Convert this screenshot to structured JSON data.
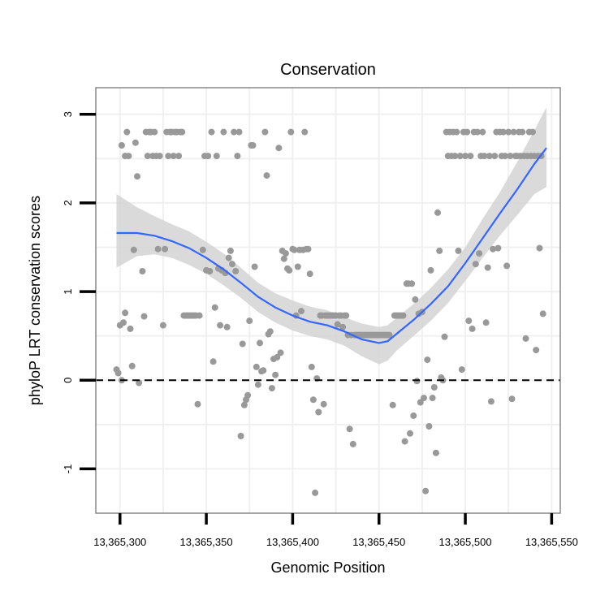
{
  "chart_data": {
    "type": "scatter",
    "title": "Conservation",
    "xlabel": "Genomic Position",
    "ylabel": "phyloP LRT conservation scores",
    "xlim": [
      13365286,
      13365555
    ],
    "ylim": [
      -1.5,
      3.3
    ],
    "x_ticks": [
      13365300,
      13365350,
      13365400,
      13365450,
      13365500,
      13365550
    ],
    "x_tick_labels": [
      "13,365,300",
      "13,365,350",
      "13,365,400",
      "13,365,450",
      "13,365,500",
      "13,365,550"
    ],
    "y_ticks": [
      -1,
      0,
      1,
      2,
      3
    ],
    "y_tick_labels": [
      "-1",
      "0",
      "1",
      "2",
      "3"
    ],
    "reference_line": {
      "y": 0,
      "style": "dashed",
      "color": "#000000"
    },
    "colors": {
      "points": "#999999",
      "smooth": "#3366ff",
      "band": "#d3d3d3",
      "frame": "#888888",
      "grid": "#f0f0f0"
    },
    "points": [
      [
        13365298,
        0.12
      ],
      [
        13365299,
        0.08
      ],
      [
        13365300,
        0.62
      ],
      [
        13365301,
        0.0
      ],
      [
        13365301,
        2.65
      ],
      [
        13365302,
        0.65
      ],
      [
        13365303,
        0.76
      ],
      [
        13365303,
        2.53
      ],
      [
        13365304,
        2.8
      ],
      [
        13365305,
        2.53
      ],
      [
        13365306,
        0.58
      ],
      [
        13365307,
        0.16
      ],
      [
        13365308,
        1.47
      ],
      [
        13365309,
        2.68
      ],
      [
        13365310,
        2.3
      ],
      [
        13365311,
        -0.03
      ],
      [
        13365313,
        1.23
      ],
      [
        13365314,
        0.72
      ],
      [
        13365315,
        2.8
      ],
      [
        13365316,
        2.53
      ],
      [
        13365317,
        2.8
      ],
      [
        13365318,
        2.8
      ],
      [
        13365319,
        2.53
      ],
      [
        13365320,
        2.8
      ],
      [
        13365321,
        2.53
      ],
      [
        13365322,
        1.48
      ],
      [
        13365323,
        2.53
      ],
      [
        13365325,
        0.62
      ],
      [
        13365326,
        1.48
      ],
      [
        13365327,
        2.8
      ],
      [
        13365328,
        2.53
      ],
      [
        13365329,
        2.8
      ],
      [
        13365330,
        2.8
      ],
      [
        13365331,
        2.53
      ],
      [
        13365332,
        2.8
      ],
      [
        13365333,
        2.8
      ],
      [
        13365334,
        2.53
      ],
      [
        13365335,
        2.8
      ],
      [
        13365336,
        2.8
      ],
      [
        13365337,
        0.73
      ],
      [
        13365338,
        0.73
      ],
      [
        13365339,
        0.73
      ],
      [
        13365340,
        0.73
      ],
      [
        13365341,
        0.73
      ],
      [
        13365342,
        0.73
      ],
      [
        13365343,
        0.73
      ],
      [
        13365344,
        0.73
      ],
      [
        13365345,
        -0.27
      ],
      [
        13365346,
        0.73
      ],
      [
        13365348,
        1.47
      ],
      [
        13365349,
        2.53
      ],
      [
        13365350,
        1.24
      ],
      [
        13365351,
        2.53
      ],
      [
        13365352,
        1.23
      ],
      [
        13365353,
        2.8
      ],
      [
        13365354,
        0.21
      ],
      [
        13365355,
        0.82
      ],
      [
        13365356,
        2.53
      ],
      [
        13365357,
        1.26
      ],
      [
        13365358,
        0.62
      ],
      [
        13365359,
        1.24
      ],
      [
        13365360,
        2.8
      ],
      [
        13365361,
        1.21
      ],
      [
        13365362,
        0.6
      ],
      [
        13365363,
        1.38
      ],
      [
        13365364,
        1.46
      ],
      [
        13365365,
        1.31
      ],
      [
        13365366,
        2.8
      ],
      [
        13365367,
        1.23
      ],
      [
        13365368,
        2.53
      ],
      [
        13365369,
        2.8
      ],
      [
        13365370,
        -0.63
      ],
      [
        13365371,
        0.41
      ],
      [
        13365372,
        -0.28
      ],
      [
        13365373,
        -0.22
      ],
      [
        13365374,
        -0.17
      ],
      [
        13365375,
        0.67
      ],
      [
        13365376,
        2.65
      ],
      [
        13365377,
        2.65
      ],
      [
        13365378,
        1.28
      ],
      [
        13365379,
        0.15
      ],
      [
        13365380,
        -0.05
      ],
      [
        13365381,
        0.42
      ],
      [
        13365382,
        0.1
      ],
      [
        13365383,
        0.11
      ],
      [
        13365384,
        2.8
      ],
      [
        13365385,
        2.31
      ],
      [
        13365386,
        0.52
      ],
      [
        13365387,
        0.55
      ],
      [
        13365388,
        -0.09
      ],
      [
        13365389,
        0.24
      ],
      [
        13365390,
        0.06
      ],
      [
        13365391,
        0.26
      ],
      [
        13365392,
        2.62
      ],
      [
        13365393,
        0.31
      ],
      [
        13365394,
        1.46
      ],
      [
        13365395,
        1.37
      ],
      [
        13365396,
        1.43
      ],
      [
        13365397,
        1.26
      ],
      [
        13365398,
        1.24
      ],
      [
        13365399,
        2.8
      ],
      [
        13365400,
        1.48
      ],
      [
        13365401,
        1.47
      ],
      [
        13365402,
        0.73
      ],
      [
        13365403,
        1.28
      ],
      [
        13365404,
        1.47
      ],
      [
        13365405,
        0.78
      ],
      [
        13365406,
        1.47
      ],
      [
        13365407,
        2.8
      ],
      [
        13365408,
        1.48
      ],
      [
        13365409,
        1.48
      ],
      [
        13365410,
        1.2
      ],
      [
        13365411,
        0.15
      ],
      [
        13365412,
        -0.22
      ],
      [
        13365413,
        -1.27
      ],
      [
        13365414,
        0.02
      ],
      [
        13365415,
        -0.36
      ],
      [
        13365416,
        0.73
      ],
      [
        13365417,
        0.73
      ],
      [
        13365418,
        -0.27
      ],
      [
        13365419,
        0.73
      ],
      [
        13365420,
        0.73
      ],
      [
        13365421,
        0.73
      ],
      [
        13365422,
        0.73
      ],
      [
        13365423,
        0.73
      ],
      [
        13365424,
        0.73
      ],
      [
        13365425,
        0.73
      ],
      [
        13365426,
        0.63
      ],
      [
        13365427,
        0.73
      ],
      [
        13365428,
        0.73
      ],
      [
        13365429,
        0.6
      ],
      [
        13365430,
        0.73
      ],
      [
        13365431,
        0.73
      ],
      [
        13365432,
        0.51
      ],
      [
        13365433,
        -0.55
      ],
      [
        13365434,
        0.51
      ],
      [
        13365435,
        -0.72
      ],
      [
        13365436,
        0.51
      ],
      [
        13365437,
        0.51
      ],
      [
        13365438,
        0.51
      ],
      [
        13365439,
        0.51
      ],
      [
        13365440,
        0.51
      ],
      [
        13365441,
        0.51
      ],
      [
        13365442,
        0.51
      ],
      [
        13365443,
        0.51
      ],
      [
        13365444,
        0.51
      ],
      [
        13365445,
        0.51
      ],
      [
        13365446,
        0.51
      ],
      [
        13365447,
        0.51
      ],
      [
        13365448,
        0.51
      ],
      [
        13365449,
        0.51
      ],
      [
        13365450,
        0.51
      ],
      [
        13365451,
        0.51
      ],
      [
        13365452,
        0.51
      ],
      [
        13365453,
        0.51
      ],
      [
        13365454,
        0.51
      ],
      [
        13365455,
        0.51
      ],
      [
        13365456,
        0.51
      ],
      [
        13365458,
        -0.28
      ],
      [
        13365459,
        0.73
      ],
      [
        13365460,
        0.73
      ],
      [
        13365461,
        0.73
      ],
      [
        13365462,
        0.73
      ],
      [
        13365463,
        0.73
      ],
      [
        13365464,
        0.73
      ],
      [
        13365465,
        -0.69
      ],
      [
        13365466,
        1.09
      ],
      [
        13365467,
        1.09
      ],
      [
        13365468,
        -0.6
      ],
      [
        13365469,
        1.09
      ],
      [
        13365470,
        -0.4
      ],
      [
        13365471,
        0.91
      ],
      [
        13365472,
        -0.01
      ],
      [
        13365473,
        0.75
      ],
      [
        13365474,
        -0.25
      ],
      [
        13365475,
        0.77
      ],
      [
        13365476,
        -0.2
      ],
      [
        13365477,
        -1.25
      ],
      [
        13365478,
        0.23
      ],
      [
        13365479,
        -0.52
      ],
      [
        13365480,
        1.24
      ],
      [
        13365481,
        -0.2
      ],
      [
        13365482,
        -0.08
      ],
      [
        13365483,
        -0.82
      ],
      [
        13365484,
        1.89
      ],
      [
        13365485,
        1.46
      ],
      [
        13365486,
        0.03
      ],
      [
        13365487,
        0.0
      ],
      [
        13365488,
        0.49
      ],
      [
        13365489,
        2.8
      ],
      [
        13365490,
        2.53
      ],
      [
        13365491,
        2.8
      ],
      [
        13365492,
        2.53
      ],
      [
        13365493,
        2.8
      ],
      [
        13365494,
        2.53
      ],
      [
        13365495,
        2.8
      ],
      [
        13365496,
        1.46
      ],
      [
        13365497,
        2.53
      ],
      [
        13365498,
        0.12
      ],
      [
        13365499,
        2.8
      ],
      [
        13365500,
        2.53
      ],
      [
        13365501,
        2.8
      ],
      [
        13365502,
        0.67
      ],
      [
        13365503,
        2.53
      ],
      [
        13365504,
        0.58
      ],
      [
        13365505,
        2.8
      ],
      [
        13365506,
        1.31
      ],
      [
        13365507,
        2.8
      ],
      [
        13365508,
        1.43
      ],
      [
        13365509,
        2.53
      ],
      [
        13365510,
        2.8
      ],
      [
        13365511,
        2.53
      ],
      [
        13365512,
        0.65
      ],
      [
        13365513,
        1.27
      ],
      [
        13365514,
        2.53
      ],
      [
        13365515,
        -0.24
      ],
      [
        13365516,
        1.48
      ],
      [
        13365517,
        2.53
      ],
      [
        13365518,
        2.8
      ],
      [
        13365519,
        1.49
      ],
      [
        13365520,
        2.8
      ],
      [
        13365521,
        2.53
      ],
      [
        13365522,
        2.8
      ],
      [
        13365523,
        2.53
      ],
      [
        13365524,
        1.29
      ],
      [
        13365525,
        2.8
      ],
      [
        13365526,
        2.53
      ],
      [
        13365527,
        -0.21
      ],
      [
        13365528,
        2.8
      ],
      [
        13365529,
        2.53
      ],
      [
        13365530,
        2.53
      ],
      [
        13365531,
        2.8
      ],
      [
        13365532,
        2.53
      ],
      [
        13365533,
        2.8
      ],
      [
        13365534,
        2.53
      ],
      [
        13365535,
        0.47
      ],
      [
        13365536,
        2.53
      ],
      [
        13365537,
        2.8
      ],
      [
        13365538,
        2.53
      ],
      [
        13365539,
        2.8
      ],
      [
        13365540,
        2.53
      ],
      [
        13365541,
        0.34
      ],
      [
        13365542,
        2.53
      ],
      [
        13365543,
        1.49
      ],
      [
        13365544,
        2.53
      ],
      [
        13365545,
        0.75
      ]
    ],
    "smooth_line": {
      "x": [
        13365298,
        13365310,
        13365320,
        13365330,
        13365340,
        13365350,
        13365360,
        13365370,
        13365380,
        13365390,
        13365400,
        13365410,
        13365420,
        13365430,
        13365440,
        13365450,
        13365455,
        13365460,
        13365470,
        13365480,
        13365490,
        13365500,
        13365510,
        13365520,
        13365530,
        13365540,
        13365547
      ],
      "y": [
        1.66,
        1.66,
        1.63,
        1.57,
        1.49,
        1.38,
        1.25,
        1.1,
        0.94,
        0.82,
        0.73,
        0.66,
        0.62,
        0.55,
        0.46,
        0.42,
        0.44,
        0.52,
        0.68,
        0.86,
        1.06,
        1.32,
        1.6,
        1.88,
        2.15,
        2.44,
        2.62
      ],
      "lo": [
        1.27,
        1.4,
        1.42,
        1.38,
        1.3,
        1.2,
        1.07,
        0.93,
        0.77,
        0.65,
        0.56,
        0.5,
        0.46,
        0.39,
        0.27,
        0.18,
        0.22,
        0.33,
        0.5,
        0.67,
        0.87,
        1.12,
        1.38,
        1.63,
        1.86,
        2.1,
        2.18
      ],
      "hi": [
        2.1,
        1.95,
        1.85,
        1.76,
        1.68,
        1.56,
        1.43,
        1.27,
        1.1,
        0.98,
        0.9,
        0.83,
        0.79,
        0.71,
        0.64,
        0.6,
        0.62,
        0.7,
        0.86,
        1.04,
        1.25,
        1.5,
        1.82,
        2.12,
        2.46,
        2.82,
        3.08
      ]
    }
  }
}
